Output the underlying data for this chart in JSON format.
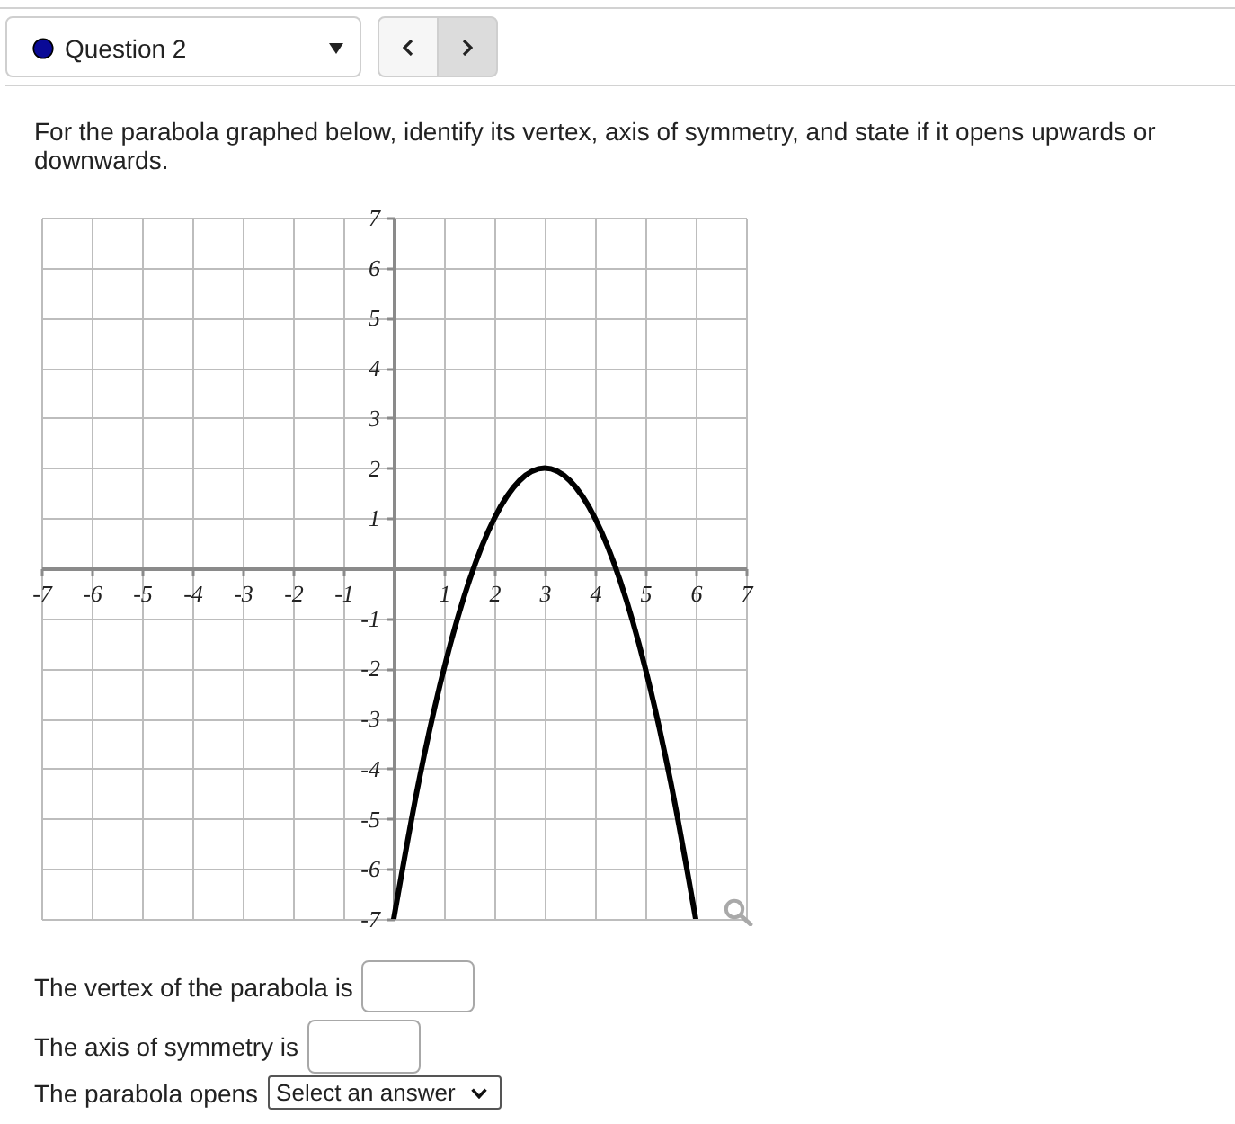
{
  "chart_data": {
    "type": "line",
    "title": "For the parabola graphed below, identify its vertex, axis of symmetry, and state if it opens upwards or downwards.",
    "annotations": [
      "Question 2",
      "The vertex of the parabola is",
      "The axis of symmetry is",
      "The parabola opens",
      "Select an answer"
    ],
    "x": [
      0,
      0.5,
      1,
      1.5,
      2,
      2.5,
      3,
      3.5,
      4,
      4.5,
      5,
      5.5,
      6
    ],
    "series": [
      {
        "color": "#000000",
        "values": [
          -7,
          -4.25,
          -2,
          -0.25,
          1,
          1.75,
          2,
          1.75,
          1,
          -0.25,
          -2,
          -4.25,
          -7
        ]
      }
    ],
    "xlim": [
      -7,
      7
    ],
    "ylim": [
      -7,
      7
    ],
    "xticks": [
      -7,
      -6,
      -5,
      -4,
      -3,
      -2,
      -1,
      1,
      2,
      3,
      4,
      5,
      6,
      7
    ],
    "yticks": [
      -7,
      -6,
      -5,
      -4,
      -3,
      -2,
      -1,
      1,
      2,
      3,
      4,
      5,
      6,
      7
    ],
    "grid": true
  }
}
